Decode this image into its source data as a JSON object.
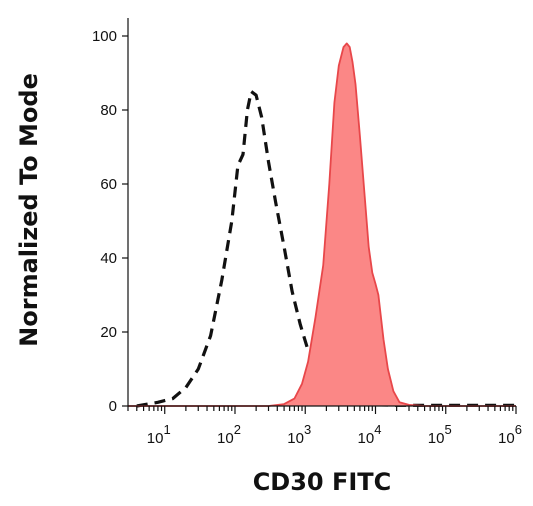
{
  "chart_data": {
    "type": "area",
    "xlabel": "CD30 FITC",
    "ylabel": "Normalized To Mode",
    "xscale": "log",
    "xlim": [
      3,
      1000000
    ],
    "ylim": [
      0,
      100
    ],
    "y_ticks": [
      0,
      20,
      40,
      60,
      80,
      100
    ],
    "x_decades": [
      {
        "base": "10",
        "exp": "1",
        "value": 10
      },
      {
        "base": "10",
        "exp": "2",
        "value": 100
      },
      {
        "base": "10",
        "exp": "3",
        "value": 1000
      },
      {
        "base": "10",
        "exp": "4",
        "value": 10000
      },
      {
        "base": "10",
        "exp": "5",
        "value": 100000
      },
      {
        "base": "10",
        "exp": "6",
        "value": 1000000
      }
    ],
    "grid": false,
    "legend": "none",
    "series": [
      {
        "style": "dashed",
        "color": "#111111",
        "fill": "none",
        "x": [
          4,
          8,
          13,
          20,
          30,
          45,
          65,
          90,
          110,
          130,
          150,
          170,
          200,
          240,
          300,
          380,
          500,
          650,
          850,
          1100,
          1500,
          2000,
          2600,
          3200,
          4200,
          5500,
          7000,
          9000,
          12000,
          20000,
          50000,
          200000,
          1000000
        ],
        "y": [
          0,
          1,
          2,
          5,
          10,
          19,
          34,
          50,
          65,
          68,
          80,
          85,
          84,
          78,
          66,
          55,
          43,
          31,
          22,
          15,
          11,
          8,
          7,
          6,
          6,
          3,
          1,
          0.5,
          0.3,
          0.2,
          0.2,
          0.2,
          0.2
        ]
      },
      {
        "style": "filled",
        "color": "#e8474a",
        "fill": "#fb8786",
        "x": [
          3,
          300,
          500,
          700,
          900,
          1100,
          1400,
          1800,
          2200,
          2600,
          3000,
          3500,
          3900,
          4300,
          4700,
          5200,
          6000,
          7000,
          8000,
          9000,
          10000,
          11000,
          13000,
          15000,
          18000,
          22000,
          30000,
          50000,
          100000,
          1000000
        ],
        "y": [
          0,
          0,
          0.5,
          2,
          6,
          12,
          24,
          38,
          60,
          82,
          92,
          97,
          98,
          97,
          93,
          87,
          73,
          57,
          43,
          36,
          33,
          30,
          18,
          10,
          4,
          1,
          0.3,
          0,
          0,
          0
        ]
      }
    ]
  }
}
